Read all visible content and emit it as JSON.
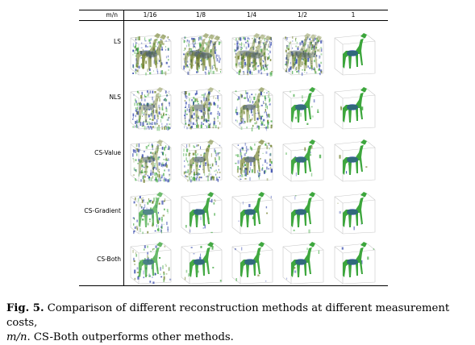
{
  "table": {
    "corner_label": "m/n",
    "columns": [
      "1/16",
      "1/8",
      "1/4",
      "1/2",
      "1"
    ],
    "rows": [
      "LS",
      "NLS",
      "CS-Value",
      "CS-Gradient",
      "CS-Both"
    ]
  },
  "images": {
    "quality": [
      [
        0.35,
        0.25,
        0.12,
        0.06,
        1.0
      ],
      [
        0.1,
        0.12,
        0.3,
        0.92,
        0.98
      ],
      [
        0.12,
        0.28,
        0.45,
        0.93,
        0.97
      ],
      [
        0.55,
        0.9,
        0.95,
        0.97,
        0.98
      ],
      [
        0.65,
        0.93,
        0.96,
        0.97,
        0.98
      ]
    ],
    "colors": {
      "green": "#3aa53a",
      "blue": "#2a3fa8",
      "olive": "#6a7a20"
    }
  },
  "caption": {
    "label": "Fig. 5.",
    "text_a": " Comparison of different reconstruction methods at different measurement costs,",
    "math": "m/n",
    "text_b": ". CS-Both outperforms other methods."
  }
}
